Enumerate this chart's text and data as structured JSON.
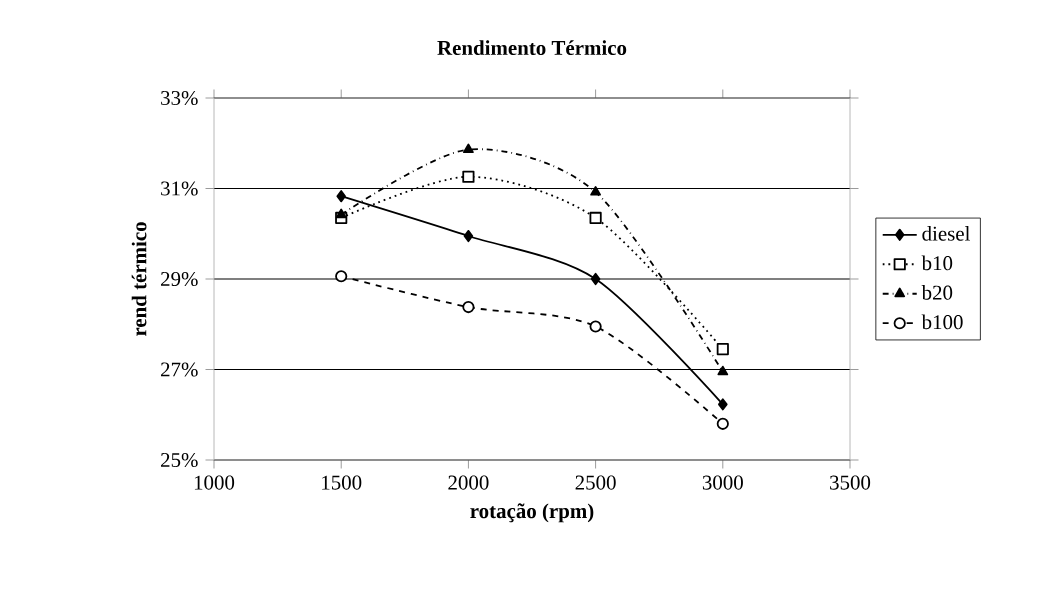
{
  "chart_data": {
    "type": "line",
    "title": "Rendimento Térmico",
    "xlabel": "rotação (rpm)",
    "ylabel": "rend térmico",
    "x": [
      1500,
      2000,
      2500,
      3000
    ],
    "series": [
      {
        "name": "diesel",
        "color": "#000000",
        "marker": "diamond",
        "line_style": "solid",
        "values": [
          30.83,
          29.95,
          29.0,
          26.23
        ]
      },
      {
        "name": "b10",
        "color": "#000000",
        "marker": "square",
        "line_style": "dotted",
        "values": [
          30.35,
          31.26,
          30.35,
          27.45
        ]
      },
      {
        "name": "b20",
        "color": "#000000",
        "marker": "triangle",
        "line_style": "dashdot",
        "values": [
          30.42,
          31.86,
          30.92,
          26.95
        ]
      },
      {
        "name": "b100",
        "color": "#000000",
        "marker": "circle",
        "line_style": "dashed",
        "values": [
          29.06,
          28.38,
          27.95,
          25.8
        ]
      }
    ],
    "xlim": [
      1000,
      3500
    ],
    "xticks": [
      1000,
      1500,
      2000,
      2500,
      3000,
      3500
    ],
    "ylim": [
      25,
      33
    ],
    "yticks": [
      {
        "value": 25,
        "label": "25%"
      },
      {
        "value": 27,
        "label": "27%"
      },
      {
        "value": 29,
        "label": "29%"
      },
      {
        "value": 31,
        "label": "31%"
      },
      {
        "value": 33,
        "label": "33%"
      }
    ],
    "grid": "y",
    "legend": "right"
  }
}
